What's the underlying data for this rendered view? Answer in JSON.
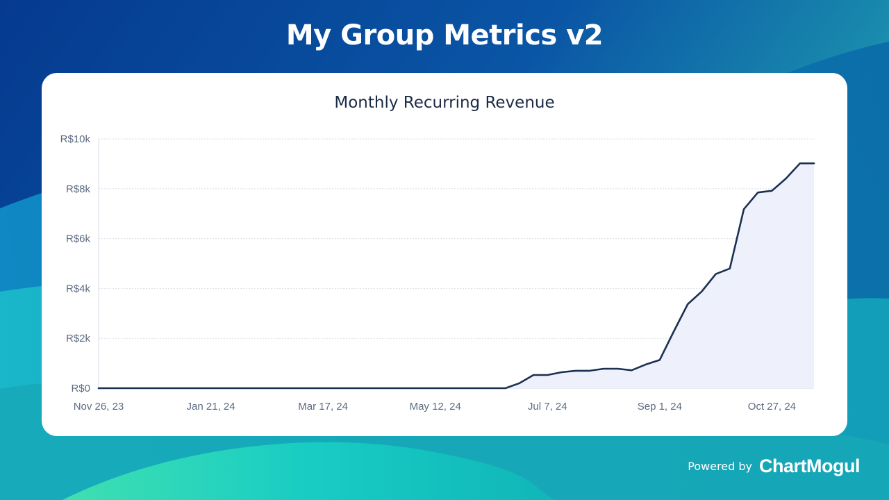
{
  "page": {
    "title": "My Group Metrics v2",
    "powered_by": "Powered by",
    "brand": "ChartMogul"
  },
  "colors": {
    "line": "#1b3150",
    "area_fill": "#eef1fb",
    "axis_text": "#5b6b80",
    "grid": "#d8dde5"
  },
  "chart_data": {
    "type": "area",
    "title": "Monthly Recurring Revenue",
    "xlabel": "",
    "ylabel": "",
    "y_unit": "R$",
    "ylim": [
      0,
      10000
    ],
    "y_ticks": [
      {
        "value": 0,
        "label": "R$0"
      },
      {
        "value": 2000,
        "label": "R$2k"
      },
      {
        "value": 4000,
        "label": "R$4k"
      },
      {
        "value": 6000,
        "label": "R$6k"
      },
      {
        "value": 8000,
        "label": "R$8k"
      },
      {
        "value": 10000,
        "label": "R$10k"
      }
    ],
    "x_tick_labels": [
      "Nov 26, 23",
      "Jan 21, 24",
      "Mar 17, 24",
      "May 12, 24",
      "Jul 7, 24",
      "Sep 1, 24",
      "Oct 27, 24"
    ],
    "grid": true,
    "legend": "none",
    "series": [
      {
        "x": [
          "2023-11-26",
          "2023-12-03",
          "2023-12-10",
          "2023-12-17",
          "2023-12-24",
          "2023-12-31",
          "2024-01-07",
          "2024-01-14",
          "2024-01-21",
          "2024-01-28",
          "2024-02-04",
          "2024-02-11",
          "2024-02-18",
          "2024-02-25",
          "2024-03-03",
          "2024-03-10",
          "2024-03-17",
          "2024-03-24",
          "2024-03-31",
          "2024-04-07",
          "2024-04-14",
          "2024-04-21",
          "2024-04-28",
          "2024-05-05",
          "2024-05-12",
          "2024-05-19",
          "2024-05-26",
          "2024-06-02",
          "2024-06-09",
          "2024-06-16",
          "2024-06-23",
          "2024-06-30",
          "2024-07-07",
          "2024-07-14",
          "2024-07-21",
          "2024-07-28",
          "2024-08-04",
          "2024-08-11",
          "2024-08-18",
          "2024-08-25",
          "2024-09-01",
          "2024-09-08",
          "2024-09-15",
          "2024-09-22",
          "2024-09-29",
          "2024-10-06",
          "2024-10-13",
          "2024-10-20",
          "2024-10-27",
          "2024-11-03",
          "2024-11-10",
          "2024-11-17"
        ],
        "values": [
          0,
          0,
          0,
          0,
          0,
          0,
          0,
          0,
          0,
          0,
          0,
          0,
          0,
          0,
          0,
          0,
          0,
          0,
          0,
          0,
          0,
          0,
          0,
          0,
          0,
          0,
          0,
          0,
          0,
          0,
          200,
          530,
          530,
          640,
          700,
          700,
          780,
          780,
          720,
          950,
          1130,
          2270,
          3370,
          3880,
          4580,
          4800,
          7180,
          7850,
          7920,
          8410,
          9020,
          9020
        ]
      }
    ]
  }
}
